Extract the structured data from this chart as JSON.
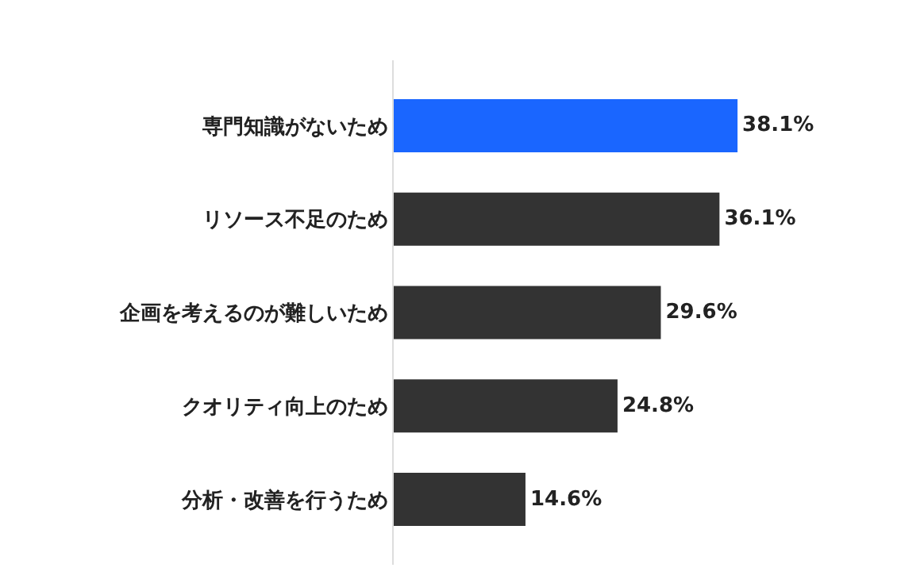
{
  "chart_data": {
    "type": "bar",
    "orientation": "horizontal",
    "categories": [
      "専門知識がないため",
      "リソース不足のため",
      "企画を考えるのが難しいため",
      "クオリティ向上のため",
      "分析・改善を行うため"
    ],
    "values": [
      38.1,
      36.1,
      29.6,
      24.8,
      14.6
    ],
    "colors": [
      "#1a66ff",
      "#333333",
      "#333333",
      "#333333",
      "#333333"
    ],
    "value_labels": [
      "38.1%",
      "36.1%",
      "29.6%",
      "24.8%",
      "14.6%"
    ],
    "tick_labels": "y"
  }
}
